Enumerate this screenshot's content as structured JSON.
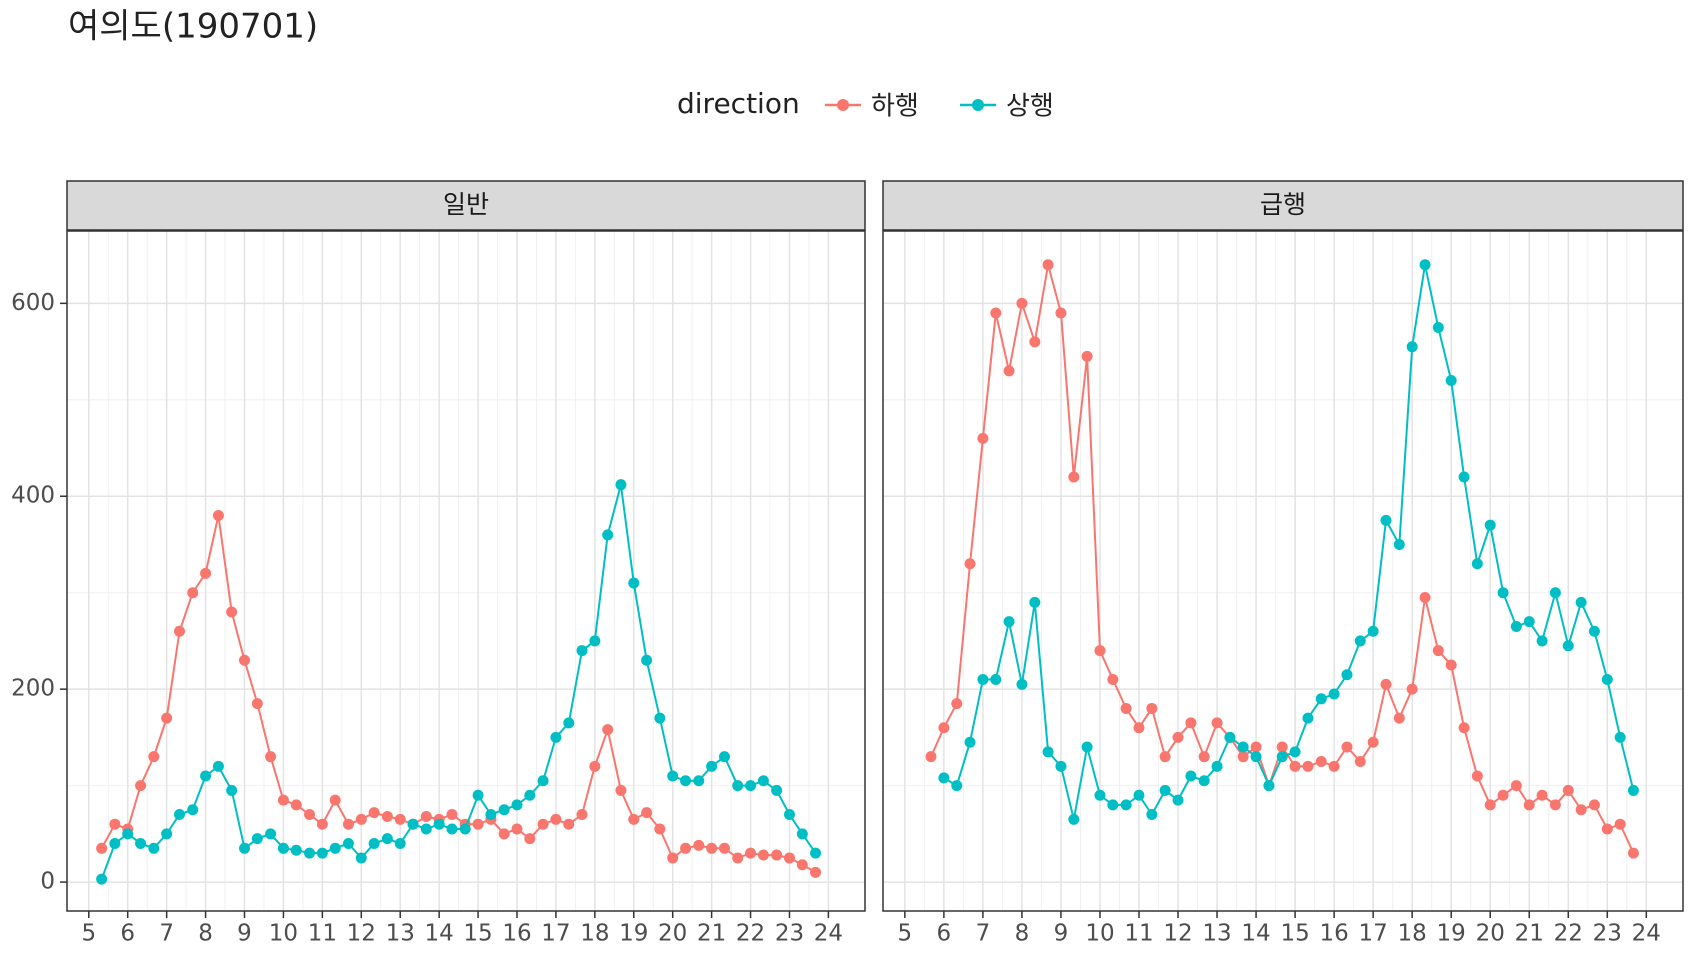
{
  "title": "여의도(190701)",
  "legend_title": "direction",
  "chart_data": [
    {
      "type": "line",
      "facet": "일반",
      "x": [
        5.33,
        5.67,
        6,
        6.33,
        6.67,
        7,
        7.33,
        7.67,
        8,
        8.33,
        8.67,
        9,
        9.33,
        9.67,
        10,
        10.33,
        10.67,
        11,
        11.33,
        11.67,
        12,
        12.33,
        12.67,
        13,
        13.33,
        13.67,
        14,
        14.33,
        14.67,
        15,
        15.33,
        15.67,
        16,
        16.33,
        16.67,
        17,
        17.33,
        17.67,
        18,
        18.33,
        18.67,
        19,
        19.33,
        19.67,
        20,
        20.33,
        20.67,
        21,
        21.33,
        21.67,
        22,
        22.33,
        22.67,
        23,
        23.33,
        23.67
      ],
      "xlim": [
        4.44,
        24.94
      ],
      "xticks": [
        5,
        6,
        7,
        8,
        9,
        10,
        11,
        12,
        13,
        14,
        15,
        16,
        17,
        18,
        19,
        20,
        21,
        22,
        23,
        24
      ],
      "ylim": [
        -30,
        675
      ],
      "yticks": [
        0,
        200,
        400,
        600
      ],
      "grid": true,
      "series": [
        {
          "name": "하행",
          "color": "#F8766D",
          "values": [
            35,
            60,
            55,
            100,
            130,
            170,
            260,
            300,
            320,
            380,
            280,
            230,
            185,
            130,
            85,
            80,
            70,
            60,
            85,
            60,
            65,
            72,
            68,
            65,
            60,
            68,
            65,
            70,
            60,
            60,
            65,
            50,
            55,
            45,
            60,
            65,
            60,
            70,
            120,
            158,
            95,
            65,
            72,
            55,
            25,
            35,
            38,
            35,
            35,
            25,
            30,
            28,
            28,
            25,
            18,
            10
          ]
        },
        {
          "name": "상행",
          "color": "#00BFC4",
          "values": [
            3,
            40,
            50,
            40,
            35,
            50,
            70,
            75,
            110,
            120,
            95,
            35,
            45,
            50,
            35,
            33,
            30,
            30,
            35,
            40,
            25,
            40,
            45,
            40,
            60,
            55,
            60,
            55,
            55,
            90,
            70,
            75,
            80,
            90,
            105,
            150,
            165,
            240,
            250,
            360,
            412,
            310,
            230,
            170,
            110,
            105,
            105,
            120,
            130,
            100,
            100,
            105,
            95,
            70,
            50,
            30
          ]
        }
      ]
    },
    {
      "type": "line",
      "facet": "급행",
      "x": [
        5.33,
        5.67,
        6,
        6.33,
        6.67,
        7,
        7.33,
        7.67,
        8,
        8.33,
        8.67,
        9,
        9.33,
        9.67,
        10,
        10.33,
        10.67,
        11,
        11.33,
        11.67,
        12,
        12.33,
        12.67,
        13,
        13.33,
        13.67,
        14,
        14.33,
        14.67,
        15,
        15.33,
        15.67,
        16,
        16.33,
        16.67,
        17,
        17.33,
        17.67,
        18,
        18.33,
        18.67,
        19,
        19.33,
        19.67,
        20,
        20.33,
        20.67,
        21,
        21.33,
        21.67,
        22,
        22.33,
        22.67,
        23,
        23.33,
        23.67
      ],
      "xlim": [
        4.44,
        24.94
      ],
      "xticks": [
        5,
        6,
        7,
        8,
        9,
        10,
        11,
        12,
        13,
        14,
        15,
        16,
        17,
        18,
        19,
        20,
        21,
        22,
        23,
        24
      ],
      "ylim": [
        -30,
        675
      ],
      "grid": true,
      "series": [
        {
          "name": "하행",
          "color": "#F8766D",
          "values": [
            null,
            130,
            160,
            185,
            330,
            460,
            590,
            530,
            600,
            560,
            640,
            590,
            420,
            545,
            240,
            210,
            180,
            160,
            180,
            130,
            150,
            165,
            130,
            165,
            150,
            130,
            140,
            100,
            140,
            120,
            120,
            125,
            120,
            140,
            125,
            145,
            205,
            170,
            200,
            295,
            240,
            225,
            160,
            110,
            80,
            90,
            100,
            80,
            90,
            80,
            95,
            75,
            80,
            55,
            60,
            30
          ]
        },
        {
          "name": "상행",
          "color": "#00BFC4",
          "values": [
            null,
            null,
            108,
            100,
            145,
            210,
            210,
            270,
            205,
            290,
            135,
            120,
            65,
            140,
            90,
            80,
            80,
            90,
            70,
            95,
            85,
            110,
            105,
            120,
            150,
            140,
            130,
            100,
            130,
            135,
            170,
            190,
            195,
            215,
            250,
            260,
            375,
            350,
            555,
            640,
            575,
            520,
            420,
            330,
            370,
            300,
            265,
            270,
            250,
            300,
            245,
            290,
            260,
            210,
            150,
            95
          ]
        }
      ]
    }
  ]
}
